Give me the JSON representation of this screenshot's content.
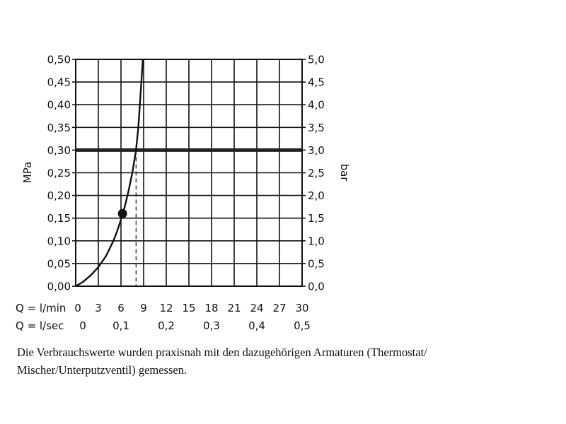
{
  "chart_data": {
    "type": "line",
    "ylabel_left": "MPa",
    "ylabel_right": "bar",
    "ylim_left": [
      0,
      0.5
    ],
    "ylim_right": [
      0,
      5
    ],
    "y_ticks_left": [
      "0,00",
      "0,05",
      "0,10",
      "0,15",
      "0,20",
      "0,25",
      "0,30",
      "0,35",
      "0,40",
      "0,45",
      "0,50"
    ],
    "y_ticks_right": [
      "0,0",
      "0,5",
      "1,0",
      "1,5",
      "2,0",
      "2,5",
      "3,0",
      "3,5",
      "4,0",
      "4,5",
      "5,0"
    ],
    "xlim": [
      0,
      30
    ],
    "x_label_lmin": "Q = l/min",
    "x_ticks_lmin": [
      "0",
      "3",
      "6",
      "9",
      "12",
      "15",
      "18",
      "21",
      "24",
      "27",
      "30"
    ],
    "x_label_lsec": "Q = l/sec",
    "x_ticks_lsec": [
      {
        "value": 0,
        "label": "0"
      },
      {
        "value": 6,
        "label": "0,1"
      },
      {
        "value": 12,
        "label": "0,2"
      },
      {
        "value": 18,
        "label": "0,3"
      },
      {
        "value": 24,
        "label": "0,4"
      },
      {
        "value": 30,
        "label": "0,5"
      }
    ],
    "grid": true,
    "series": [
      {
        "x": [
          0,
          1,
          2,
          3,
          4,
          5,
          5.5,
          6,
          6.5,
          7,
          7.5,
          8,
          8.3,
          8.5,
          8.7,
          8.9
        ],
        "y": [
          0,
          0.01,
          0.024,
          0.042,
          0.066,
          0.1,
          0.122,
          0.147,
          0.175,
          0.21,
          0.25,
          0.3,
          0.35,
          0.4,
          0.45,
          0.5
        ]
      }
    ],
    "reference_line_y": 0.3,
    "reference_line_x": 8,
    "marker": {
      "x": 6.2,
      "y": 0.16
    }
  },
  "caption": "Die Verbrauchswerte wurden praxisnah mit den dazugehörigen Armaturen (Thermostat/ Mischer/Unterputzventil) gemessen."
}
